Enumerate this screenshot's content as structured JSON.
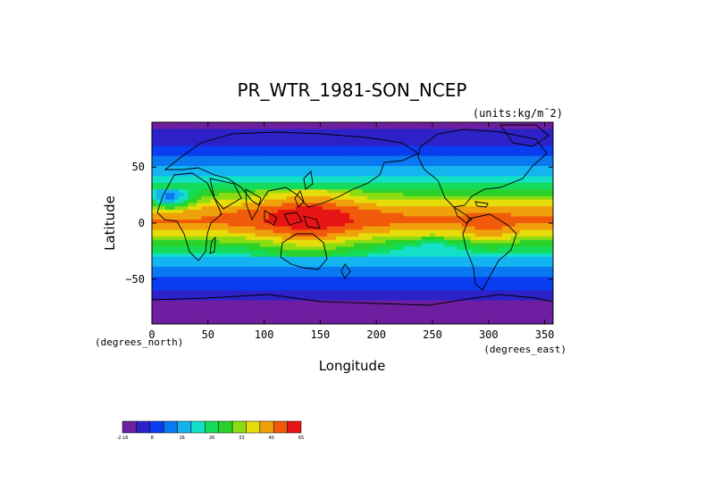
{
  "chart_data": {
    "type": "heatmap",
    "title": "PR_WTR_1981-SON_NCEP",
    "units_label": "(units:kg/m¯2)",
    "xlabel": "Longitude",
    "ylabel": "Latitude",
    "x_units_label": "(degrees_east)",
    "y_units_label": "(degrees_north)",
    "xlim": [
      0,
      357.5
    ],
    "ylim": [
      -90,
      90
    ],
    "x_ticks": [
      0,
      50,
      100,
      150,
      200,
      250,
      300,
      350
    ],
    "y_ticks": [
      50,
      0,
      -50
    ],
    "y_tick_labels": [
      "50",
      "0",
      "−50"
    ],
    "grid": false,
    "colorbar": {
      "colors": [
        "#6e1fa0",
        "#2d22c8",
        "#0a3cf0",
        "#0a78f0",
        "#14b4f0",
        "#14e0c8",
        "#14dc5a",
        "#2ad22a",
        "#8cdc14",
        "#e6dc0a",
        "#f0a00a",
        "#f05a0a",
        "#e61414"
      ],
      "tick_labels": [
        "-2.16",
        "8",
        "16",
        "26",
        "33",
        "40",
        "65"
      ]
    },
    "zonal_mean_profile": {
      "latitudes": [
        90,
        80,
        70,
        60,
        50,
        40,
        30,
        20,
        10,
        0,
        -10,
        -20,
        -30,
        -40,
        -50,
        -60,
        -70,
        -80,
        -90
      ],
      "values": [
        3,
        5,
        8,
        12,
        17,
        22,
        30,
        38,
        46,
        47,
        40,
        30,
        22,
        16,
        12,
        9,
        4,
        2,
        1
      ]
    }
  }
}
